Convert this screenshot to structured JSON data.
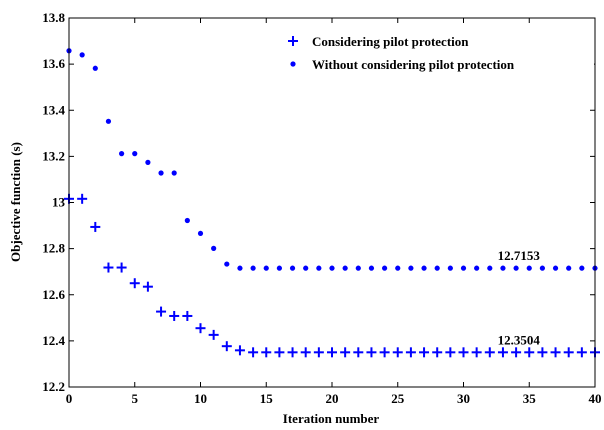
{
  "chart_data": {
    "type": "scatter",
    "title": "",
    "xlabel": "Iteration number",
    "ylabel": "Objective function (s)",
    "xlim": [
      0,
      40
    ],
    "ylim": [
      12.2,
      13.8
    ],
    "x_ticks": [
      "0",
      "5",
      "10",
      "15",
      "20",
      "25",
      "30",
      "35",
      "40"
    ],
    "y_ticks": [
      "12.2",
      "12.4",
      "12.6",
      "12.8",
      "13",
      "13.2",
      "13.4",
      "13.6",
      "13.8"
    ],
    "grid": false,
    "legend_position": "top-right",
    "color": "#0000ff",
    "series": [
      {
        "name": "Considering pilot protection",
        "marker": "plus",
        "x": [
          0,
          1,
          2,
          3,
          4,
          5,
          6,
          7,
          8,
          9,
          10,
          11,
          12,
          13,
          14,
          15,
          16,
          17,
          18,
          19,
          20,
          21,
          22,
          23,
          24,
          25,
          26,
          27,
          28,
          29,
          30,
          31,
          32,
          33,
          34,
          35,
          36,
          37,
          38,
          39,
          40
        ],
        "values": [
          13.016,
          13.016,
          12.894,
          12.718,
          12.718,
          12.65,
          12.635,
          12.527,
          12.508,
          12.508,
          12.455,
          12.426,
          12.377,
          12.359,
          12.3504,
          12.3504,
          12.3504,
          12.3504,
          12.3504,
          12.3504,
          12.3504,
          12.3504,
          12.3504,
          12.3504,
          12.3504,
          12.3504,
          12.3504,
          12.3504,
          12.3504,
          12.3504,
          12.3504,
          12.3504,
          12.3504,
          12.3504,
          12.3504,
          12.3504,
          12.3504,
          12.3504,
          12.3504,
          12.3504,
          12.3504
        ]
      },
      {
        "name": "Without considering pilot protection",
        "marker": "dot",
        "x": [
          0,
          1,
          2,
          3,
          4,
          5,
          6,
          7,
          8,
          9,
          10,
          11,
          12,
          13,
          14,
          15,
          16,
          17,
          18,
          19,
          20,
          21,
          22,
          23,
          24,
          25,
          26,
          27,
          28,
          29,
          30,
          31,
          32,
          33,
          34,
          35,
          36,
          37,
          38,
          39,
          40
        ],
        "values": [
          13.658,
          13.64,
          13.582,
          13.352,
          13.212,
          13.212,
          13.174,
          13.128,
          13.128,
          12.922,
          12.866,
          12.801,
          12.733,
          12.7153,
          12.7153,
          12.7153,
          12.7153,
          12.7153,
          12.7153,
          12.7153,
          12.7153,
          12.7153,
          12.7153,
          12.7153,
          12.7153,
          12.7153,
          12.7153,
          12.7153,
          12.7153,
          12.7153,
          12.7153,
          12.7153,
          12.7153,
          12.7153,
          12.7153,
          12.7153,
          12.7153,
          12.7153,
          12.7153,
          12.7153,
          12.7153
        ]
      }
    ],
    "annotations": [
      {
        "text": "12.7153",
        "x": 34.2,
        "y": 12.7153
      },
      {
        "text": "12.3504",
        "x": 34.2,
        "y": 12.3504
      }
    ]
  }
}
